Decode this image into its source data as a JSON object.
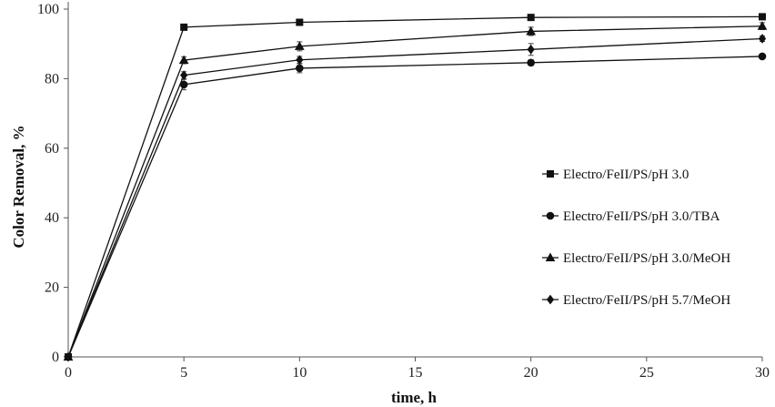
{
  "chart_data": {
    "type": "line",
    "title": "",
    "xlabel": "time, h",
    "ylabel": "Color Removal, %",
    "xlim": [
      0,
      30
    ],
    "ylim": [
      0,
      100
    ],
    "x_ticks": [
      0,
      5,
      10,
      15,
      20,
      25,
      30
    ],
    "y_ticks": [
      0,
      20,
      40,
      60,
      80,
      100
    ],
    "grid": false,
    "legend_position": "right",
    "x": [
      0,
      5,
      10,
      20,
      30
    ],
    "series": [
      {
        "name": "Electro/FeII/PS/pH 3.0",
        "marker": "square",
        "values": [
          0,
          94.8,
          96.2,
          97.6,
          97.8
        ],
        "errors": [
          0,
          0.8,
          0.8,
          0.6,
          0.6
        ]
      },
      {
        "name": "Electro/FeII/PS/pH 3.0/TBA",
        "marker": "circle",
        "values": [
          0,
          78.3,
          83.0,
          84.6,
          86.4
        ],
        "errors": [
          0,
          1.5,
          1.3,
          0.8,
          0.6
        ]
      },
      {
        "name": "Electro/FeII/PS/pH 3.0/MeOH",
        "marker": "triangle",
        "values": [
          0,
          85.3,
          89.3,
          93.6,
          95.1
        ],
        "errors": [
          0,
          1.0,
          1.3,
          1.2,
          1.0
        ]
      },
      {
        "name": "Electro/FeII/PS/pH 5.7/MeOH",
        "marker": "diamond",
        "values": [
          0,
          81.0,
          85.4,
          88.4,
          91.5
        ],
        "errors": [
          0,
          1.0,
          1.0,
          1.7,
          0.8
        ]
      }
    ]
  }
}
